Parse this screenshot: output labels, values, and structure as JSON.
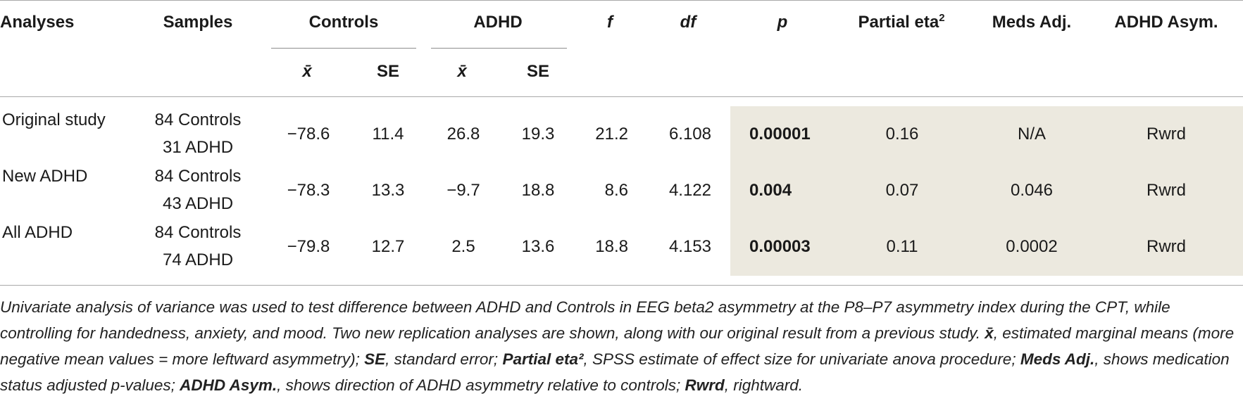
{
  "headers": {
    "analyses": "Analyses",
    "samples": "Samples",
    "controls": "Controls",
    "adhd": "ADHD",
    "f": "f",
    "df": "df",
    "p": "p",
    "partial_eta": "Partial eta",
    "partial_eta_sup": "2",
    "meds_adj": "Meds Adj.",
    "adhd_asym": "ADHD Asym.",
    "mean": "x̄",
    "se": "SE"
  },
  "rows": [
    {
      "analysis": "Original study",
      "sample_controls": "84 Controls",
      "sample_adhd": "31 ADHD",
      "controls_mean": "−78.6",
      "controls_se": "11.4",
      "adhd_mean": "26.8",
      "adhd_se": "19.3",
      "f": "21.2",
      "df": "6.108",
      "p": "0.00001",
      "eta": "0.16",
      "meds": "N/A",
      "asym": "Rwrd"
    },
    {
      "analysis": "New ADHD",
      "sample_controls": "84 Controls",
      "sample_adhd": "43 ADHD",
      "controls_mean": "−78.3",
      "controls_se": "13.3",
      "adhd_mean": "−9.7",
      "adhd_se": "18.8",
      "f": "8.6",
      "df": "4.122",
      "p": "0.004",
      "eta": "0.07",
      "meds": "0.046",
      "asym": "Rwrd"
    },
    {
      "analysis": "All ADHD",
      "sample_controls": "84 Controls",
      "sample_adhd": "74 ADHD",
      "controls_mean": "−79.8",
      "controls_se": "12.7",
      "adhd_mean": "2.5",
      "adhd_se": "13.6",
      "f": "18.8",
      "df": "4.153",
      "p": "0.00003",
      "eta": "0.11",
      "meds": "0.0002",
      "asym": "Rwrd"
    }
  ],
  "caption": {
    "t1": "Univariate analysis of variance was used to test difference between ADHD and Controls in EEG beta2 asymmetry at the P8–P7 asymmetry index during the CPT, while controlling for handedness, anxiety, and mood. Two new replication analyses are shown, along with our original result from a previous study. ",
    "b1": "x̄",
    "t2": ", estimated marginal means (more negative mean values = more leftward asymmetry); ",
    "b2": "SE",
    "t3": ", standard error; ",
    "b3": "Partial eta²",
    "t4": ", SPSS estimate of effect size for univariate anova procedure; ",
    "b4": "Meds Adj.",
    "t5": ", shows medication status adjusted p-values; ",
    "b5": "ADHD Asym.",
    "t6": ", shows direction of ADHD asymmetry relative to controls; ",
    "b6": "Rwrd",
    "t7": ", rightward."
  }
}
